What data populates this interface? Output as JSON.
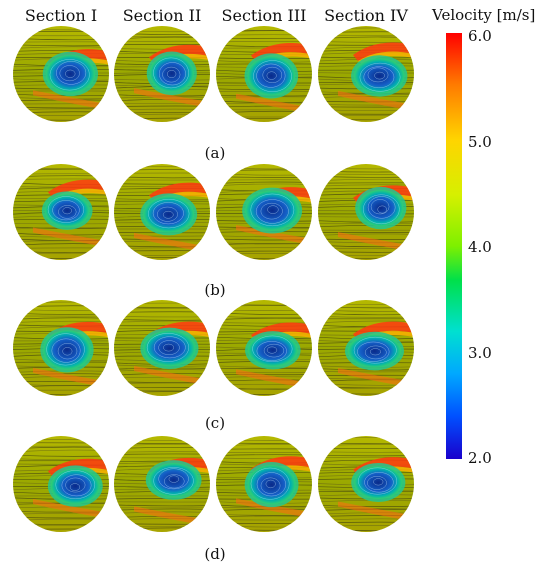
{
  "sections": [
    "Section I",
    "Section II",
    "Section III",
    "Section IV"
  ],
  "rows": [
    {
      "label": "(a)"
    },
    {
      "label": "(b)"
    },
    {
      "label": "(c)"
    },
    {
      "label": "(d)"
    }
  ],
  "colorbar": {
    "title": "Velocity [m/s]",
    "ticks": [
      "6.0",
      "5.0",
      "4.0",
      "3.0",
      "2.0"
    ],
    "min": 2.0,
    "max": 6.0
  }
}
